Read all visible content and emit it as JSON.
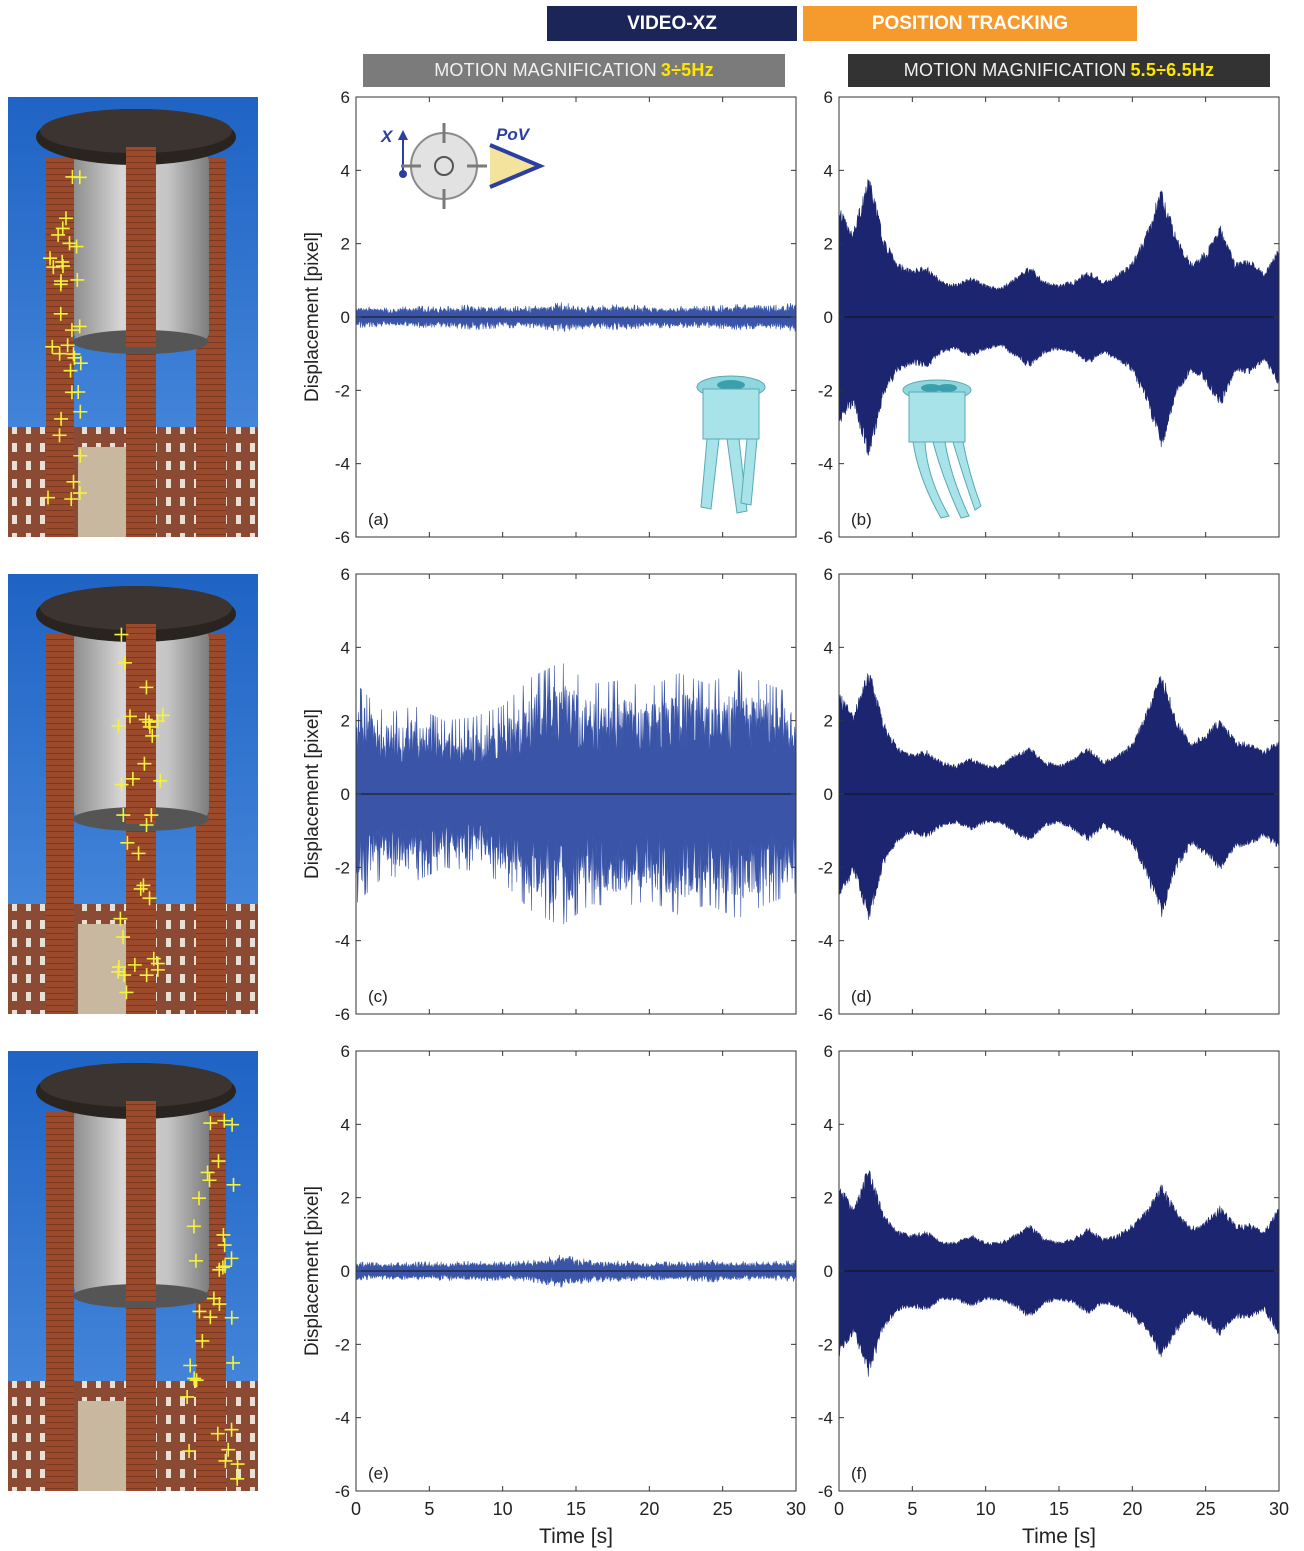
{
  "header": {
    "left_title": "VIDEO-XZ",
    "right_title": "POSITION TRACKING",
    "left_color": "#1c2558",
    "right_color": "#f59a2c"
  },
  "subheaders": {
    "left_prefix": "MOTION MAGNIFICATION",
    "left_band": "3÷5Hz",
    "right_prefix": "MOTION MAGNIFICATION",
    "right_band": "5.5÷6.5Hz",
    "left_color": "#7b7b7b",
    "right_color": "#333333",
    "band_color": "#ffe600"
  },
  "inset": {
    "axis_label": "X",
    "pov_label": "PoV"
  },
  "chart_data": [
    {
      "panel": "(a)",
      "type": "line",
      "ylabel": "Displacement [pixel]",
      "xlim": [
        0,
        30
      ],
      "ylim": [
        -6,
        6
      ],
      "xticks": [
        0,
        5,
        10,
        15,
        20,
        25,
        30
      ],
      "yticks": [
        -6,
        -4,
        -2,
        0,
        2,
        4,
        6
      ],
      "color": "#3a55a8",
      "envelope_x": [
        0,
        2,
        4,
        6,
        8,
        10,
        12,
        14,
        16,
        18,
        20,
        22,
        24,
        26,
        28,
        30
      ],
      "envelope_y": [
        0.3,
        0.25,
        0.3,
        0.28,
        0.35,
        0.3,
        0.3,
        0.4,
        0.3,
        0.35,
        0.3,
        0.3,
        0.3,
        0.35,
        0.3,
        0.4
      ]
    },
    {
      "panel": "(b)",
      "type": "line",
      "ylabel": "",
      "xlim": [
        0,
        30
      ],
      "ylim": [
        -6,
        6
      ],
      "xticks": [
        0,
        5,
        10,
        15,
        20,
        25,
        30
      ],
      "yticks": [
        -6,
        -4,
        -2,
        0,
        2,
        4,
        6
      ],
      "color": "#1b2570",
      "envelope_x": [
        0,
        1,
        2,
        2.5,
        3,
        4,
        5,
        6,
        7,
        8,
        9,
        10,
        11,
        12,
        13,
        14,
        15,
        16,
        17,
        18,
        19,
        20,
        21,
        22,
        23,
        24,
        25,
        26,
        27,
        28,
        29,
        30
      ],
      "envelope_y": [
        3.0,
        2.4,
        3.9,
        3.2,
        2.2,
        1.5,
        1.3,
        1.4,
        1.0,
        0.9,
        1.1,
        0.9,
        0.8,
        1.1,
        1.4,
        1.0,
        0.9,
        1.0,
        1.3,
        1.0,
        1.2,
        1.5,
        2.4,
        3.6,
        2.2,
        1.5,
        1.8,
        2.5,
        1.5,
        1.6,
        1.2,
        1.9
      ]
    },
    {
      "panel": "(c)",
      "type": "line",
      "ylabel": "Displacement [pixel]",
      "xlim": [
        0,
        30
      ],
      "ylim": [
        -6,
        6
      ],
      "xticks": [
        0,
        5,
        10,
        15,
        20,
        25,
        30
      ],
      "yticks": [
        -6,
        -4,
        -2,
        0,
        2,
        4,
        6
      ],
      "color": "#3a55a8",
      "envelope_x": [
        0,
        2,
        4,
        6,
        8,
        10,
        12,
        14,
        16,
        18,
        20,
        22,
        24,
        26,
        28,
        30
      ],
      "envelope_y": [
        3.0,
        2.2,
        2.4,
        2.0,
        2.1,
        2.4,
        3.2,
        3.6,
        3.0,
        3.1,
        2.9,
        3.3,
        3.0,
        3.4,
        3.0,
        2.7
      ]
    },
    {
      "panel": "(d)",
      "type": "line",
      "ylabel": "",
      "xlim": [
        0,
        30
      ],
      "ylim": [
        -6,
        6
      ],
      "xticks": [
        0,
        5,
        10,
        15,
        20,
        25,
        30
      ],
      "yticks": [
        -6,
        -4,
        -2,
        0,
        2,
        4,
        6
      ],
      "color": "#1b2570",
      "envelope_x": [
        0,
        1,
        2,
        2.5,
        3,
        4,
        5,
        6,
        7,
        8,
        9,
        10,
        11,
        12,
        13,
        14,
        15,
        16,
        17,
        18,
        19,
        20,
        21,
        22,
        23,
        24,
        25,
        26,
        27,
        28,
        29,
        30
      ],
      "envelope_y": [
        2.8,
        2.2,
        3.5,
        2.8,
        2.0,
        1.3,
        1.1,
        1.2,
        0.9,
        0.8,
        1.0,
        0.8,
        0.8,
        1.1,
        1.3,
        0.9,
        0.8,
        1.0,
        1.3,
        0.9,
        1.1,
        1.4,
        2.3,
        3.4,
        2.1,
        1.4,
        1.7,
        2.1,
        1.5,
        1.4,
        1.2,
        1.5
      ]
    },
    {
      "panel": "(e)",
      "type": "line",
      "ylabel": "Displacement [pixel]",
      "xlabel": "Time [s]",
      "xlim": [
        0,
        30
      ],
      "ylim": [
        -6,
        6
      ],
      "xticks": [
        0,
        5,
        10,
        15,
        20,
        25,
        30
      ],
      "yticks": [
        -6,
        -4,
        -2,
        0,
        2,
        4,
        6
      ],
      "color": "#3a55a8",
      "envelope_x": [
        0,
        2,
        4,
        6,
        8,
        10,
        12,
        14,
        16,
        18,
        20,
        22,
        24,
        26,
        28,
        30
      ],
      "envelope_y": [
        0.25,
        0.22,
        0.25,
        0.25,
        0.28,
        0.25,
        0.3,
        0.45,
        0.3,
        0.28,
        0.25,
        0.25,
        0.3,
        0.28,
        0.25,
        0.3
      ]
    },
    {
      "panel": "(f)",
      "type": "line",
      "ylabel": "",
      "xlabel": "Time [s]",
      "xlim": [
        0,
        30
      ],
      "ylim": [
        -6,
        6
      ],
      "xticks": [
        0,
        5,
        10,
        15,
        20,
        25,
        30
      ],
      "yticks": [
        -6,
        -4,
        -2,
        0,
        2,
        4,
        6
      ],
      "color": "#1b2570",
      "envelope_x": [
        0,
        1,
        2,
        2.5,
        3,
        4,
        5,
        6,
        7,
        8,
        9,
        10,
        11,
        12,
        13,
        14,
        15,
        16,
        17,
        18,
        19,
        20,
        21,
        22,
        23,
        24,
        25,
        26,
        27,
        28,
        29,
        30
      ],
      "envelope_y": [
        2.4,
        1.7,
        2.9,
        2.3,
        1.6,
        1.1,
        1.0,
        1.1,
        0.8,
        0.8,
        1.0,
        0.8,
        0.8,
        1.0,
        1.3,
        0.9,
        0.8,
        0.9,
        1.2,
        0.9,
        1.0,
        1.3,
        1.7,
        2.4,
        1.7,
        1.2,
        1.4,
        1.8,
        1.3,
        1.3,
        1.1,
        1.8
      ]
    }
  ]
}
